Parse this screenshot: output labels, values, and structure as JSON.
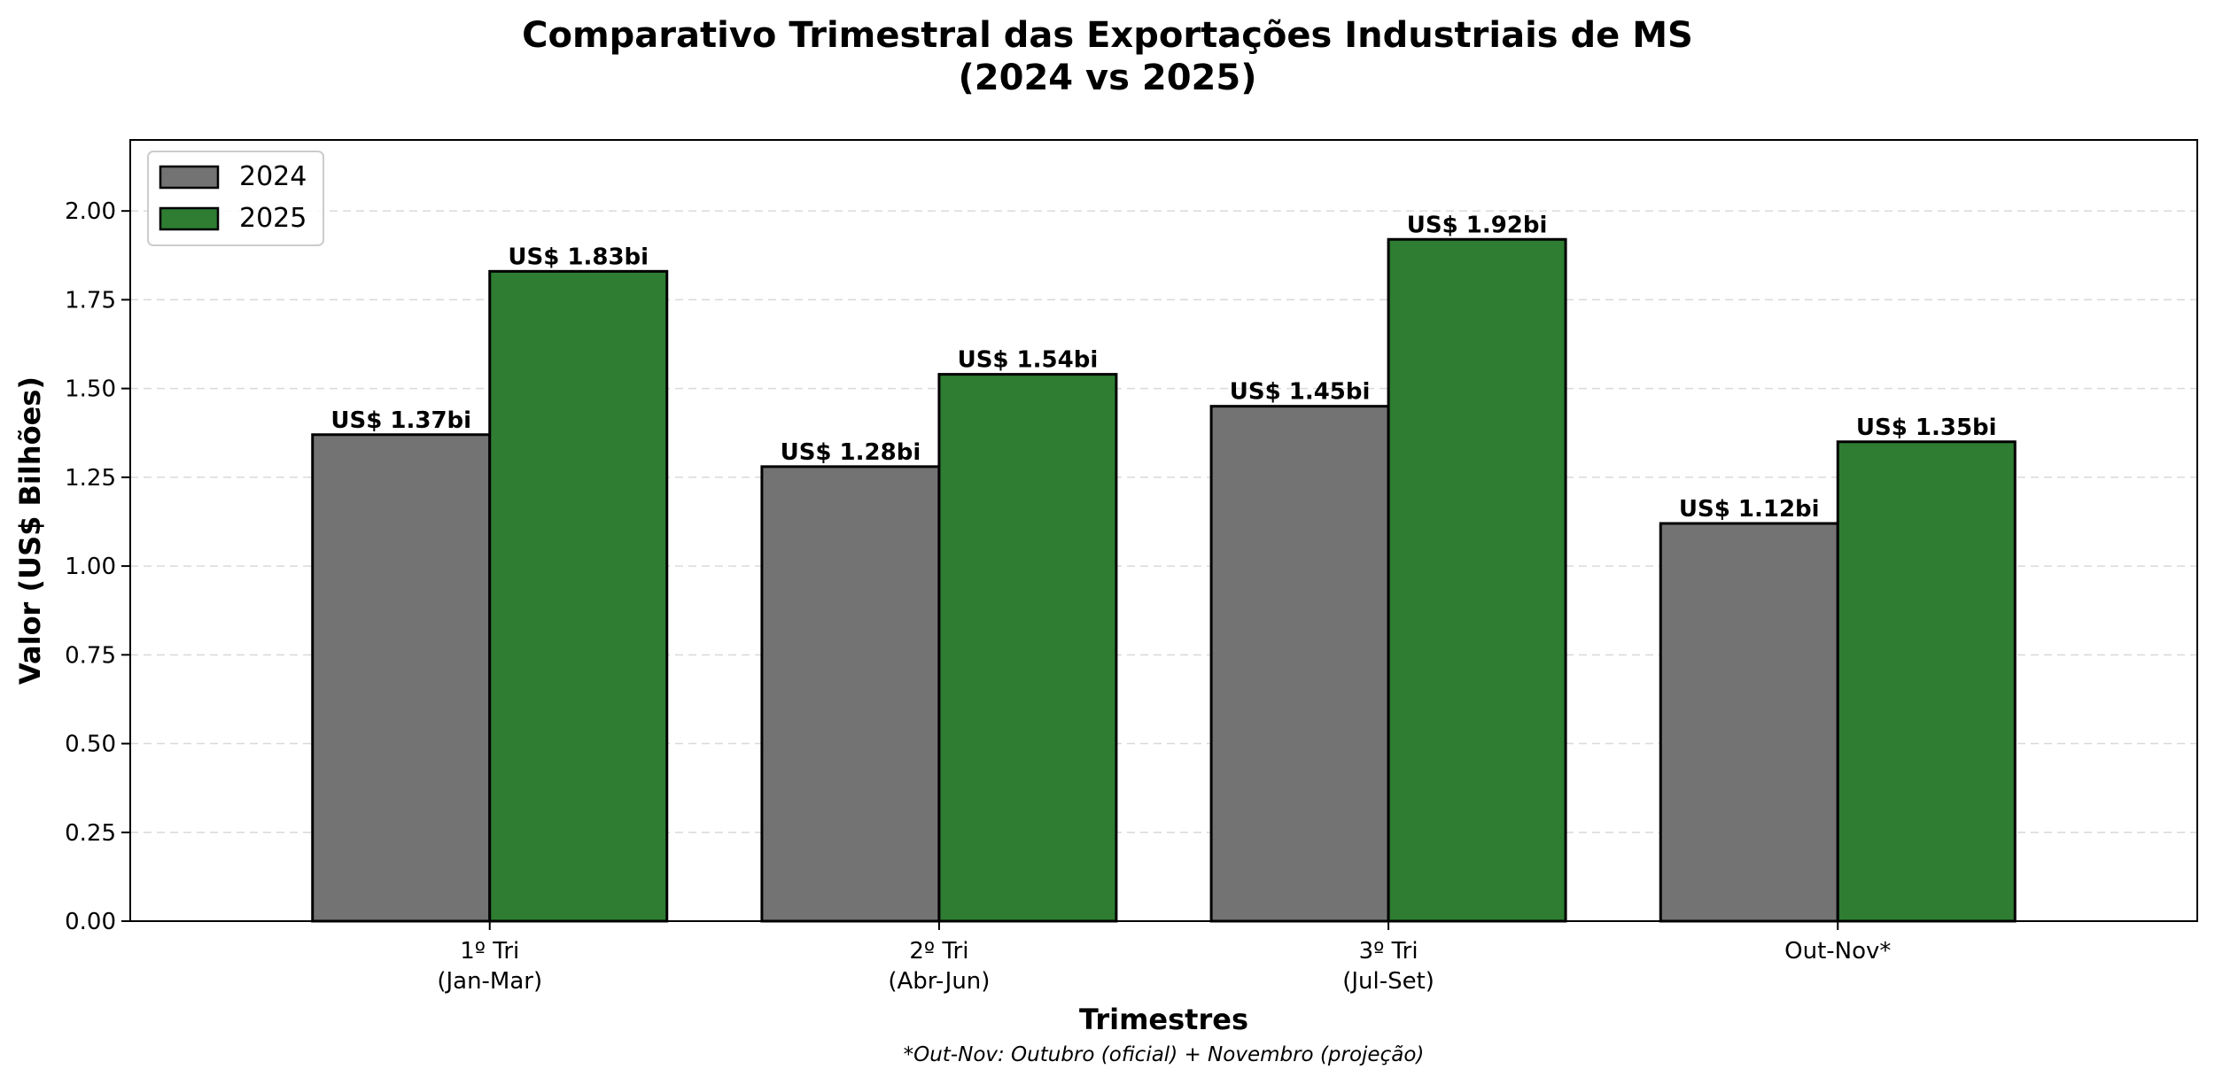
{
  "chart_data": {
    "type": "bar",
    "title": "Comparativo Trimestral das Exportações Industriais de MS",
    "subtitle": "(2024 vs 2025)",
    "xlabel": "Trimestres",
    "ylabel": "Valor (US$ Bilhões)",
    "footnote": "*Out-Nov: Outubro (oficial) + Novembro (projeção)",
    "categories": [
      [
        "1º Tri",
        "(Jan-Mar)"
      ],
      [
        "2º Tri",
        "(Abr-Jun)"
      ],
      [
        "3º Tri",
        "(Jul-Set)"
      ],
      [
        "Out-Nov*"
      ]
    ],
    "series": [
      {
        "name": "2024",
        "color": "#737373",
        "values": [
          1.37,
          1.28,
          1.45,
          1.12
        ],
        "labels": [
          "US$ 1.37bi",
          "US$ 1.28bi",
          "US$ 1.45bi",
          "US$ 1.12bi"
        ]
      },
      {
        "name": "2025",
        "color": "#2e7d32",
        "values": [
          1.83,
          1.54,
          1.92,
          1.35
        ],
        "labels": [
          "US$ 1.83bi",
          "US$ 1.54bi",
          "US$ 1.92bi",
          "US$ 1.35bi"
        ]
      }
    ],
    "ylim": [
      0,
      2.2
    ],
    "yticks": [
      "0.00",
      "0.25",
      "0.50",
      "0.75",
      "1.00",
      "1.25",
      "1.50",
      "1.75",
      "2.00"
    ],
    "grid": "y-dashed",
    "legend_position": "upper-left"
  }
}
